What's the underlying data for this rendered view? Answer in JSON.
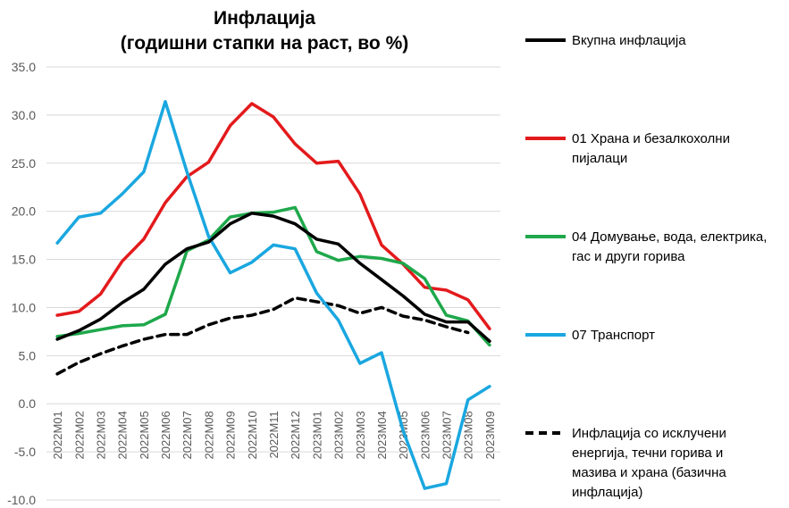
{
  "chart_data": {
    "type": "line",
    "title": "Инфлација",
    "subtitle": "(годишни стапки на раст, во %)",
    "xlabel": "",
    "ylabel": "",
    "ylim": [
      -10,
      35
    ],
    "yticks": [
      "35.0",
      "30.0",
      "25.0",
      "20.0",
      "15.0",
      "10.0",
      "5.0",
      "0.0",
      "-5.0",
      "-10.0"
    ],
    "grid": true,
    "legend_position": "right",
    "categories": [
      "2022M01",
      "2022M02",
      "2022M03",
      "2022M04",
      "2022M05",
      "2022M06",
      "2022M07",
      "2022M08",
      "2022M09",
      "2022M10",
      "2022M11",
      "2022M12",
      "2023M01",
      "2023M02",
      "2023M03",
      "2023M04",
      "2023M05",
      "2023M06",
      "2023M07",
      "2023M08",
      "2023M09"
    ],
    "series": [
      {
        "name": "Вкупна инфлација",
        "color": "#000000",
        "dash": "solid",
        "values": [
          6.7,
          7.6,
          8.8,
          10.5,
          11.9,
          14.5,
          16.1,
          16.8,
          18.7,
          19.8,
          19.5,
          18.7,
          17.1,
          16.6,
          14.6,
          12.9,
          11.2,
          9.3,
          8.5,
          8.5,
          6.5
        ]
      },
      {
        "name": "01 Храна и безалкохолни пијалаци",
        "color": "#e31a1c",
        "dash": "solid",
        "values": [
          9.2,
          9.6,
          11.4,
          14.8,
          17.1,
          20.9,
          23.6,
          25.1,
          28.9,
          31.2,
          29.8,
          27.0,
          25.0,
          25.2,
          21.8,
          16.5,
          14.5,
          12.1,
          11.8,
          10.8,
          7.8
        ]
      },
      {
        "name": "04 Домување, вода, електрика, гас и други горива",
        "color": "#1ea84b",
        "dash": "solid",
        "values": [
          7.0,
          7.3,
          7.7,
          8.1,
          8.2,
          9.3,
          15.9,
          17.0,
          19.4,
          19.8,
          19.9,
          20.4,
          15.8,
          14.9,
          15.3,
          15.1,
          14.6,
          13.0,
          9.2,
          8.6,
          6.1
        ]
      },
      {
        "name": "07 Транспорт",
        "color": "#1aa7e0",
        "dash": "solid",
        "values": [
          16.7,
          19.4,
          19.8,
          21.8,
          24.1,
          31.4,
          24.1,
          17.4,
          13.6,
          14.7,
          16.5,
          16.1,
          11.5,
          8.7,
          4.2,
          5.3,
          -2.8,
          -8.8,
          -8.3,
          0.4,
          1.8
        ]
      },
      {
        "name": "Инфлација со исклучени енергија, течни горива и мазива и храна (базична инфлација)",
        "color": "#000000",
        "dash": "dashed",
        "values": [
          3.1,
          4.3,
          5.2,
          6.0,
          6.7,
          7.2,
          7.2,
          8.2,
          8.9,
          9.2,
          9.8,
          11.0,
          10.6,
          10.2,
          9.4,
          10.0,
          9.1,
          8.7,
          8.0,
          7.4,
          null
        ]
      }
    ]
  },
  "legend": {
    "items": [
      {
        "lines": [
          "Вкупна инфлација"
        ]
      },
      {
        "lines": [
          "01 Храна и безалкохолни",
          "пијалаци"
        ]
      },
      {
        "lines": [
          "04 Домување, вода, електрика,",
          "гас и други горива"
        ]
      },
      {
        "lines": [
          "07 Транспорт"
        ]
      },
      {
        "lines": [
          "Инфлација со исклучени",
          "енергија, течни горива и",
          "мазива и храна (базична",
          "инфлација)"
        ]
      }
    ]
  }
}
